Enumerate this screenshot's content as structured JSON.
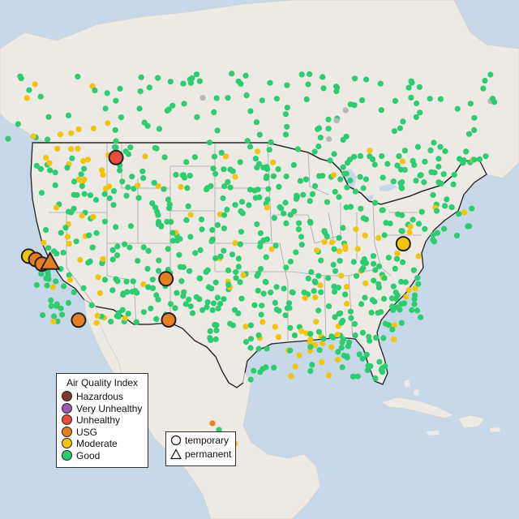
{
  "colors": {
    "water": "#c7d9e8",
    "land": "#ede9e4",
    "good": "#2ecc71",
    "moderate": "#f1c40f",
    "usg": "#e67e22",
    "unhealthy": "#e74c3c",
    "very_unhealthy": "#9b59b6",
    "hazardous": "#7b3a2e",
    "nodata": "#b8b8b8"
  },
  "legend": {
    "title": "Air Quality Index",
    "items": [
      {
        "label": "Hazardous",
        "color": "#7b3a2e"
      },
      {
        "label": "Very Unhealthy",
        "color": "#9b59b6"
      },
      {
        "label": "Unhealthy",
        "color": "#e74c3c"
      },
      {
        "label": "USG",
        "color": "#e67e22"
      },
      {
        "label": "Moderate",
        "color": "#f1c40f"
      },
      {
        "label": "Good",
        "color": "#2ecc71"
      }
    ]
  },
  "type_legend": {
    "temporary": "temporary",
    "permanent": "permanent"
  },
  "monitors": [
    {
      "lon": -112.4,
      "lat": 47.6,
      "level": "unhealthy",
      "type": "temporary"
    },
    {
      "lon": -122.2,
      "lat": 39.5,
      "level": "moderate",
      "type": "temporary"
    },
    {
      "lon": -121.4,
      "lat": 39.1,
      "level": "usg",
      "type": "temporary"
    },
    {
      "lon": -120.7,
      "lat": 38.6,
      "level": "usg",
      "type": "temporary"
    },
    {
      "lon": -119.8,
      "lat": 38.7,
      "level": "usg",
      "type": "permanent"
    },
    {
      "lon": -116.6,
      "lat": 33.0,
      "level": "usg",
      "type": "temporary"
    },
    {
      "lon": -106.8,
      "lat": 36.1,
      "level": "usg",
      "type": "temporary"
    },
    {
      "lon": -106.5,
      "lat": 32.3,
      "level": "usg",
      "type": "temporary"
    },
    {
      "lon": -80.2,
      "lat": 39.7,
      "level": "moderate",
      "type": "temporary"
    }
  ]
}
